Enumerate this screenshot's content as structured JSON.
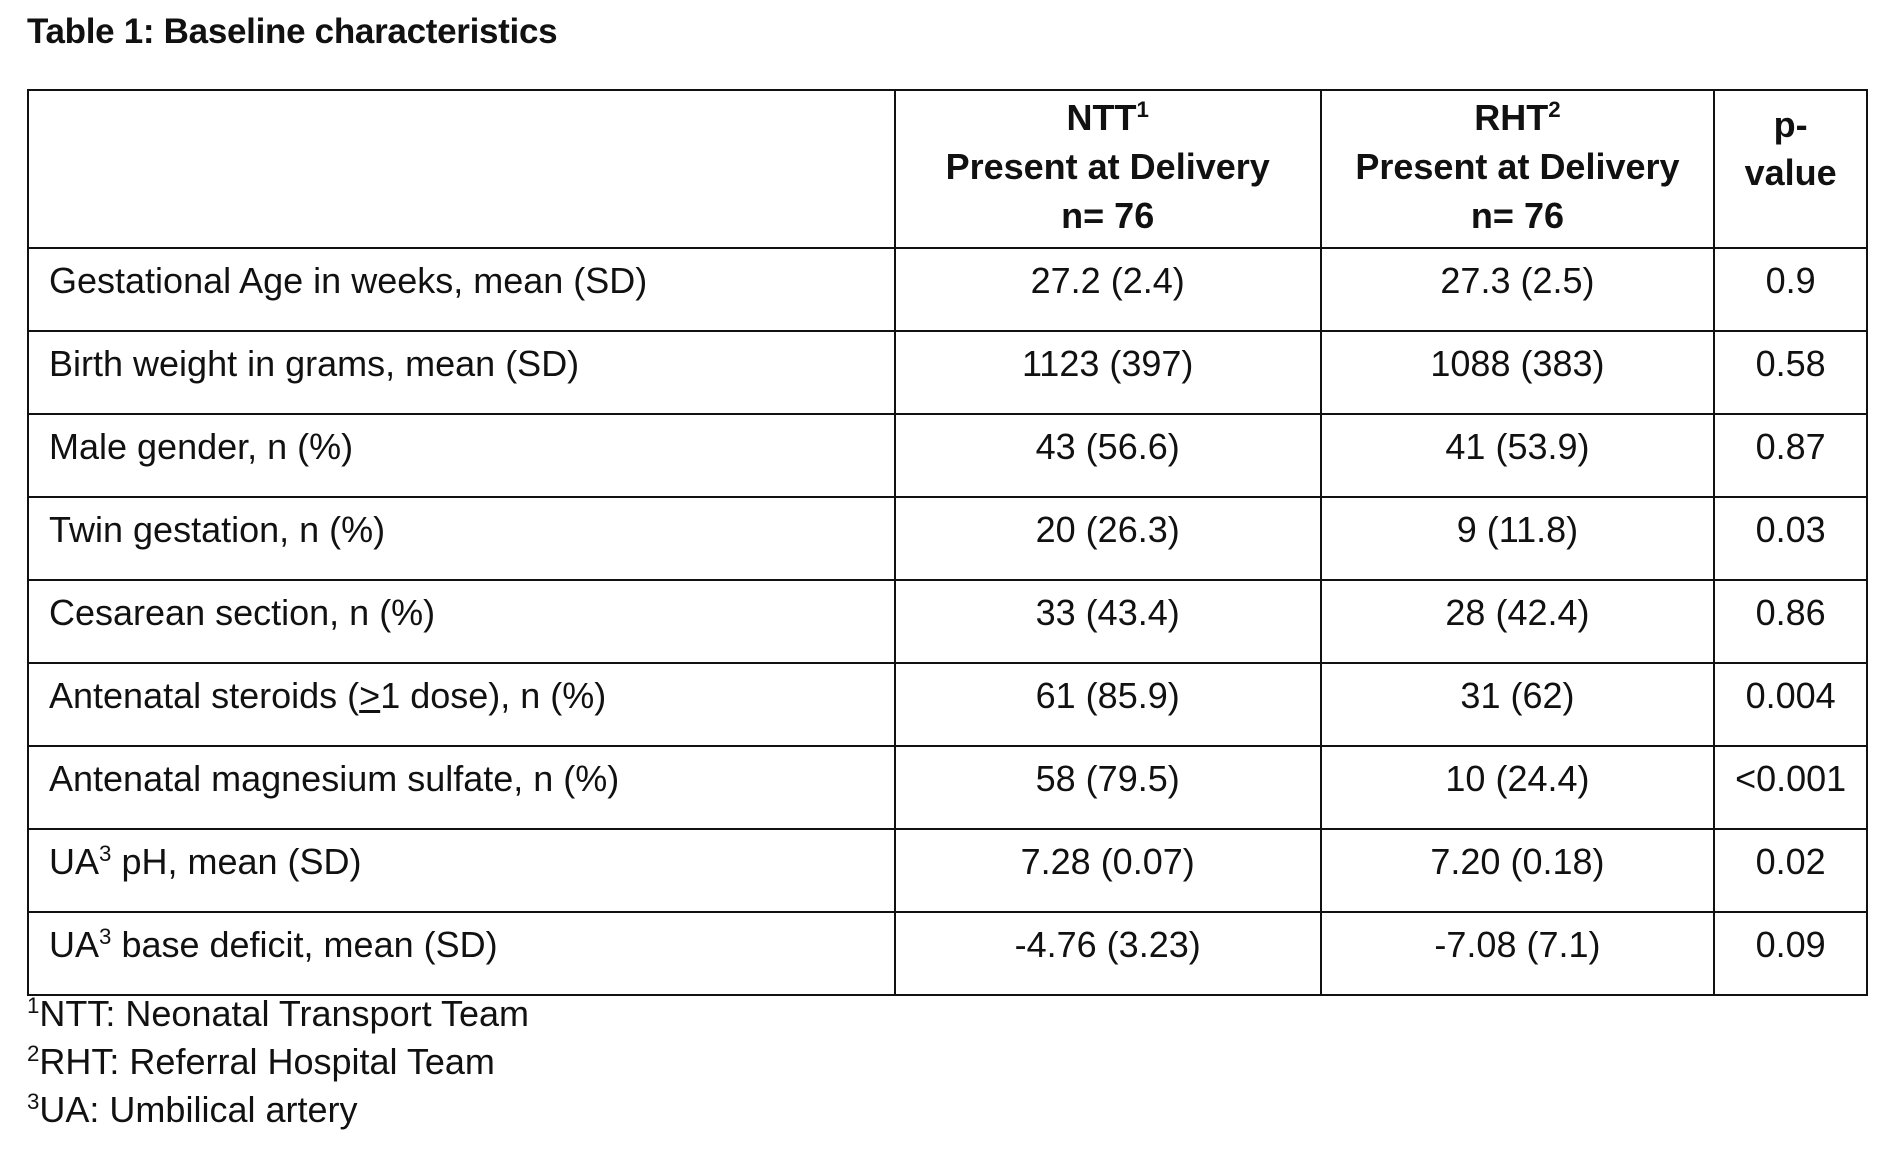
{
  "title": "Table 1: Baseline characteristics",
  "header": {
    "label": "",
    "ntt": {
      "abbr": "NTT",
      "sup": "1",
      "line2": "Present at Delivery",
      "line3": "n= 76"
    },
    "rht": {
      "abbr": "RHT",
      "sup": "2",
      "line2": "Present at Delivery",
      "line3": "n= 76"
    },
    "pvalue": {
      "line1": "p-",
      "line2": "value"
    }
  },
  "rows": [
    {
      "label": "Gestational Age in weeks, mean (SD)",
      "ntt": "27.2 (2.4)",
      "rht": "27.3 (2.5)",
      "p": "0.9"
    },
    {
      "label": "Birth weight in grams, mean (SD)",
      "ntt": "1123 (397)",
      "rht": "1088 (383)",
      "p": "0.58"
    },
    {
      "label": "Male gender, n (%)",
      "ntt": "43 (56.6)",
      "rht": "41 (53.9)",
      "p": "0.87"
    },
    {
      "label": "Twin gestation, n (%)",
      "ntt": "20 (26.3)",
      "rht": "9 (11.8)",
      "p": "0.03"
    },
    {
      "label": "Cesarean section, n (%)",
      "ntt": "33 (43.4)",
      "rht": "28 (42.4)",
      "p": "0.86"
    },
    {
      "label_pre": "Antenatal steroids (",
      "label_u": ">",
      "label_post": "1 dose), n (%)",
      "ntt": "61 (85.9)",
      "rht": "31 (62)",
      "p": "0.004"
    },
    {
      "label": "Antenatal magnesium sulfate, n (%)",
      "ntt": "58 (79.5)",
      "rht": "10 (24.4)",
      "p": "<0.001"
    },
    {
      "label_pre": "UA",
      "label_sup": "3",
      "label_post": " pH, mean (SD)",
      "ntt": "7.28 (0.07)",
      "rht": "7.20 (0.18)",
      "p": "0.02"
    },
    {
      "label_pre": "UA",
      "label_sup": "3",
      "label_post": " base deficit, mean (SD)",
      "ntt": "-4.76 (3.23)",
      "rht": "-7.08 (7.1)",
      "p": "0.09"
    }
  ],
  "footnotes": [
    {
      "sup": "1",
      "text": "NTT: Neonatal Transport Team"
    },
    {
      "sup": "2",
      "text": "RHT: Referral Hospital Team"
    },
    {
      "sup": "3",
      "text": "UA: Umbilical artery"
    }
  ]
}
